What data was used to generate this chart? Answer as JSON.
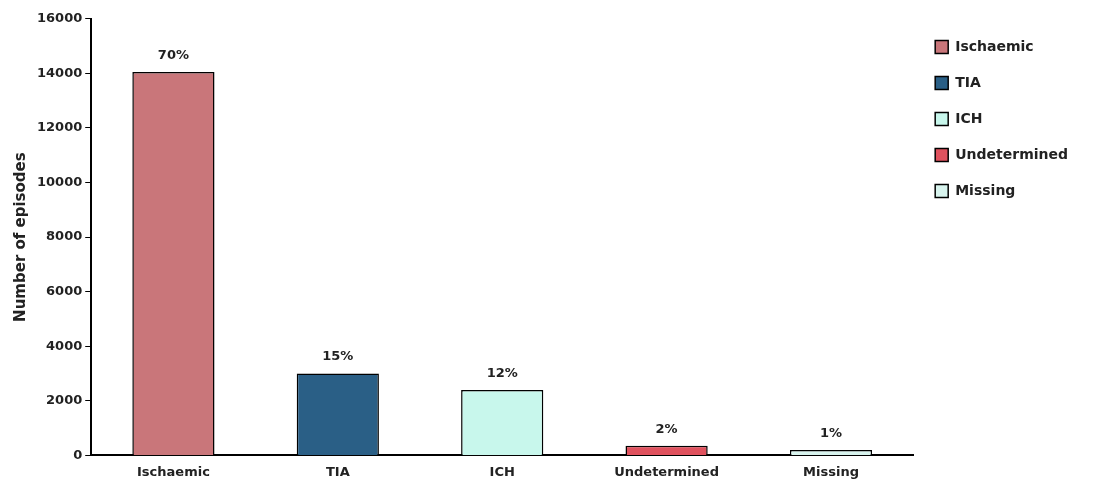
{
  "chart_data": {
    "type": "bar",
    "ylabel": "Number of episodes",
    "categories": [
      "Ischaemic",
      "TIA",
      "ICH",
      "Undetermined",
      "Missing"
    ],
    "series": [
      {
        "name": "Ischaemic",
        "color": "#c9767a",
        "values": [
          14050,
          null,
          null,
          null,
          null
        ]
      },
      {
        "name": "TIA",
        "color": "#2a5f86",
        "values": [
          null,
          3000,
          null,
          null,
          null
        ]
      },
      {
        "name": "ICH",
        "color": "#c8f7ec",
        "values": [
          null,
          null,
          2400,
          null,
          null
        ]
      },
      {
        "name": "Undetermined",
        "color": "#e0525e",
        "values": [
          null,
          null,
          null,
          350,
          null
        ]
      },
      {
        "name": "Missing",
        "color": "#d8f4ee",
        "values": [
          null,
          null,
          null,
          null,
          200
        ]
      }
    ],
    "annotations": [
      {
        "text": "70%",
        "x": "Ischaemic",
        "y": 14050
      },
      {
        "text": "15%",
        "x": "TIA",
        "y": 3000
      },
      {
        "text": "12%",
        "x": "ICH",
        "y": 2400
      },
      {
        "text": "2%",
        "x": "Undetermined",
        "y": 350
      },
      {
        "text": "1%",
        "x": "Missing",
        "y": 200
      }
    ],
    "ylim": [
      0,
      16000
    ],
    "yticks": [
      0,
      2000,
      4000,
      6000,
      8000,
      10000,
      12000,
      14000,
      16000
    ],
    "grid": false,
    "legend": "right"
  }
}
